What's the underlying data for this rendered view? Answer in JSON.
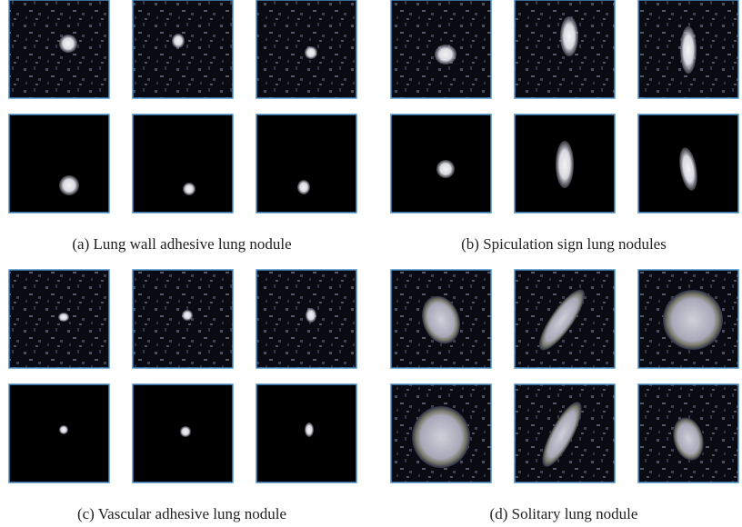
{
  "panels": [
    {
      "caption": "(a) Lung wall adhesive lung nodule"
    },
    {
      "caption": "(b) Spiculation sign lung nodules"
    },
    {
      "caption": "(c) Vascular adhesive lung nodule"
    },
    {
      "caption": "(d) Solitary lung nodule"
    }
  ]
}
